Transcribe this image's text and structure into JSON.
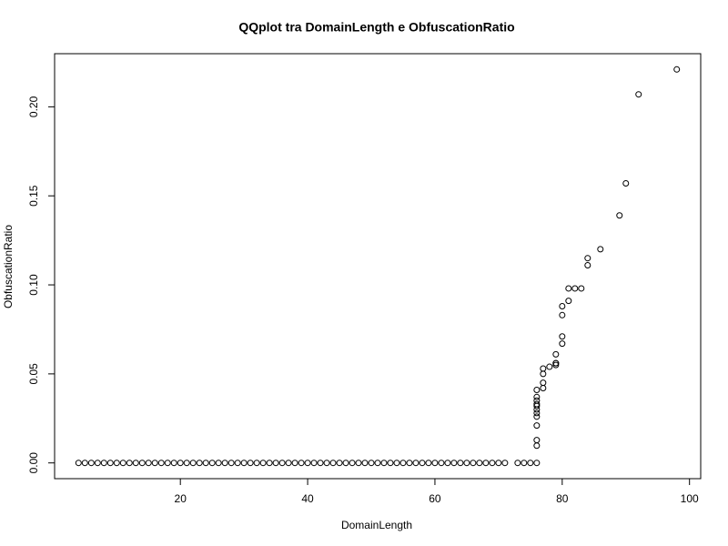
{
  "chart_data": {
    "type": "scatter",
    "title": "QQplot tra DomainLength e ObfuscationRatio",
    "x_label": "DomainLength",
    "y_label": "ObfuscationRatio",
    "color": "#000000",
    "x": [
      4,
      5,
      6,
      7,
      8,
      9,
      10,
      11,
      12,
      13,
      14,
      15,
      16,
      17,
      18,
      19,
      20,
      21,
      22,
      23,
      24,
      25,
      26,
      27,
      28,
      29,
      30,
      31,
      32,
      33,
      34,
      35,
      36,
      37,
      38,
      39,
      40,
      41,
      42,
      43,
      44,
      45,
      46,
      47,
      48,
      49,
      50,
      51,
      52,
      53,
      54,
      55,
      56,
      57,
      58,
      59,
      60,
      61,
      62,
      63,
      64,
      65,
      66,
      67,
      68,
      69,
      70,
      71,
      73,
      74,
      75,
      76,
      76,
      76,
      76,
      76,
      76,
      76,
      76,
      76,
      76,
      76,
      76,
      77,
      77,
      77,
      77,
      78,
      79,
      79,
      79,
      79,
      80,
      80,
      80,
      80,
      81,
      81,
      82,
      83,
      84,
      84,
      86,
      89,
      90,
      92,
      98
    ],
    "y": [
      0,
      0,
      0,
      0,
      0,
      0,
      0,
      0,
      0,
      0,
      0,
      0,
      0,
      0,
      0,
      0,
      0,
      0,
      0,
      0,
      0,
      0,
      0,
      0,
      0,
      0,
      0,
      0,
      0,
      0,
      0,
      0,
      0,
      0,
      0,
      0,
      0,
      0,
      0,
      0,
      0,
      0,
      0,
      0,
      0,
      0,
      0,
      0,
      0,
      0,
      0,
      0,
      0,
      0,
      0,
      0,
      0,
      0,
      0,
      0,
      0,
      0,
      0,
      0,
      0,
      0,
      0,
      0,
      0,
      0,
      0,
      0,
      0.0097,
      0.0128,
      0.021,
      0.026,
      0.028,
      0.03,
      0.032,
      0.035,
      0.037,
      0.041,
      0.033,
      0.042,
      0.045,
      0.05,
      0.053,
      0.054,
      0.055,
      0.056,
      0.056,
      0.061,
      0.067,
      0.071,
      0.083,
      0.088,
      0.091,
      0.098,
      0.098,
      0.098,
      0.111,
      0.115,
      0.12,
      0.139,
      0.157,
      0.207,
      0.221
    ],
    "xlim": [
      0.24,
      101.76
    ],
    "ylim": [
      -0.00884,
      0.22984
    ],
    "xticks": [
      20,
      40,
      60,
      80,
      100
    ],
    "yticks": [
      {
        "value": 0,
        "label": "0.00"
      },
      {
        "value": 0.05,
        "label": "0.05"
      },
      {
        "value": 0.1,
        "label": "0.10"
      },
      {
        "value": 0.15,
        "label": "0.15"
      },
      {
        "value": 0.2,
        "label": "0.20"
      }
    ]
  }
}
